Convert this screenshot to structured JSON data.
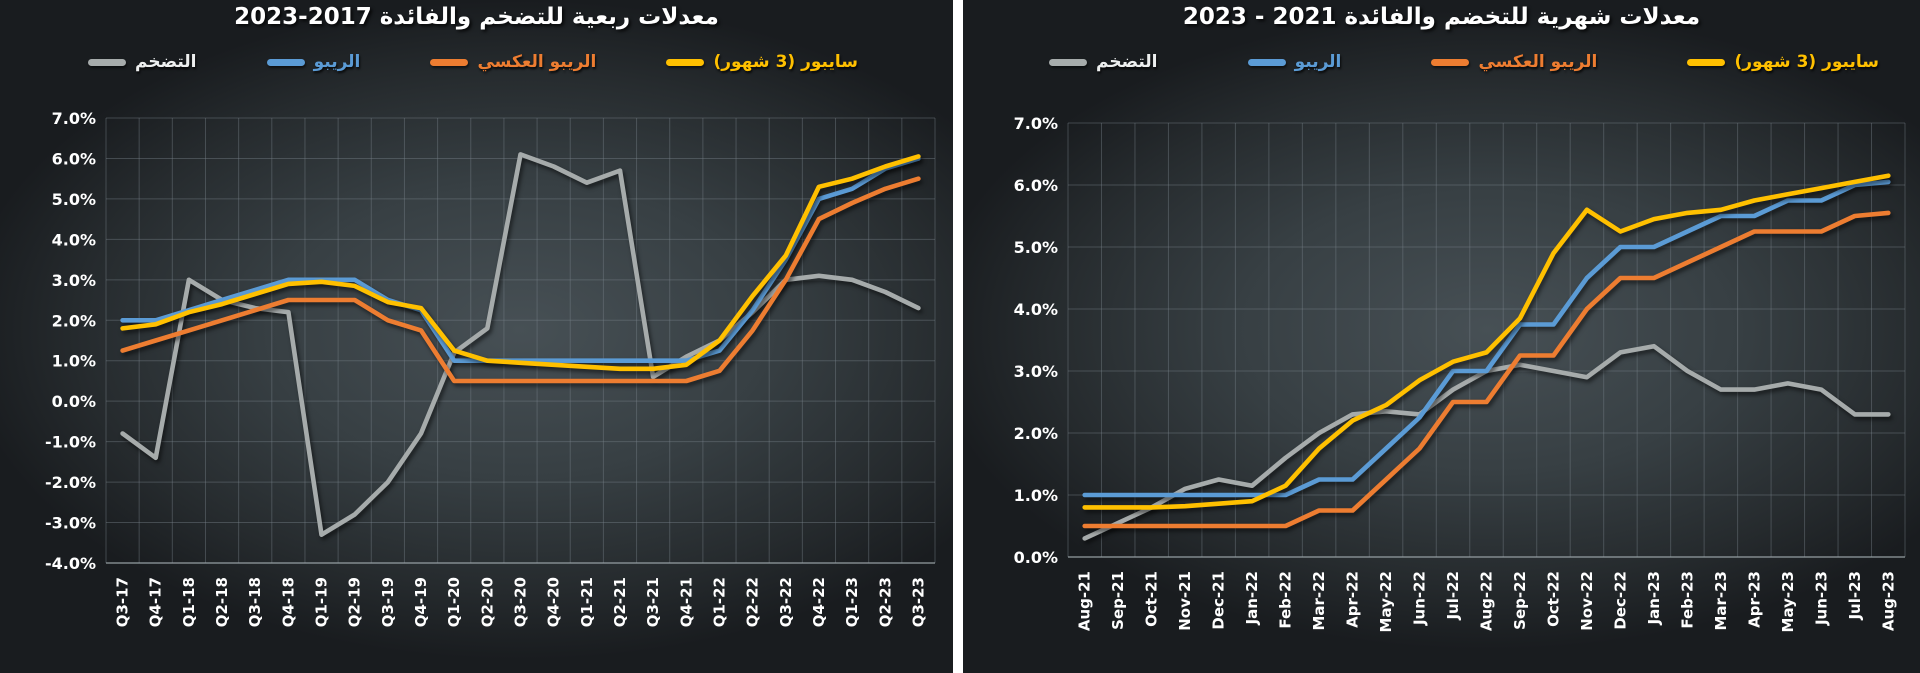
{
  "page": {
    "background": "#1a1d20",
    "divider_color": "#ffffff"
  },
  "chart_data": [
    {
      "type": "line",
      "title": "معدلات ربعية للتضخم والفائدة 2017-2023",
      "xlabel": "",
      "ylabel": "",
      "ylim": [
        -4,
        7
      ],
      "ytick_step": 1,
      "ytick_suffix": "%",
      "grid": true,
      "legend_position": "top",
      "categories": [
        "Q3-17",
        "Q4-17",
        "Q1-18",
        "Q2-18",
        "Q3-18",
        "Q4-18",
        "Q1-19",
        "Q2-19",
        "Q3-19",
        "Q4-19",
        "Q1-20",
        "Q2-20",
        "Q3-20",
        "Q4-20",
        "Q1-21",
        "Q2-21",
        "Q3-21",
        "Q4-21",
        "Q1-22",
        "Q2-22",
        "Q3-22",
        "Q4-22",
        "Q1-23",
        "Q2-23",
        "Q3-23"
      ],
      "series": [
        {
          "name": "التضخم",
          "color": "#A6ABAB",
          "legend_text_color": "#EDEFEF",
          "values": [
            -0.8,
            -1.4,
            3.0,
            2.5,
            2.3,
            2.2,
            -3.3,
            -2.8,
            -2.0,
            -0.8,
            1.2,
            1.8,
            6.1,
            5.8,
            5.4,
            5.7,
            0.6,
            1.1,
            1.5,
            2.2,
            3.0,
            3.1,
            3.0,
            2.7,
            2.3
          ]
        },
        {
          "name": "الريبو",
          "color": "#5B9BD5",
          "values": [
            2.0,
            2.0,
            2.25,
            2.5,
            2.75,
            3.0,
            3.0,
            3.0,
            2.5,
            2.25,
            1.0,
            1.0,
            1.0,
            1.0,
            1.0,
            1.0,
            1.0,
            1.0,
            1.25,
            2.25,
            3.5,
            5.0,
            5.25,
            5.75,
            6.0
          ]
        },
        {
          "name": "الريبو العكسي",
          "color": "#ED7D31",
          "values": [
            1.25,
            1.5,
            1.75,
            2.0,
            2.25,
            2.5,
            2.5,
            2.5,
            2.0,
            1.75,
            0.5,
            0.5,
            0.5,
            0.5,
            0.5,
            0.5,
            0.5,
            0.5,
            0.75,
            1.75,
            3.0,
            4.5,
            4.9,
            5.25,
            5.5
          ]
        },
        {
          "name": "سايبور (3 شهور)",
          "color": "#FFC000",
          "values": [
            1.8,
            1.9,
            2.2,
            2.4,
            2.65,
            2.9,
            2.95,
            2.85,
            2.45,
            2.3,
            1.25,
            1.0,
            0.95,
            0.9,
            0.85,
            0.8,
            0.8,
            0.9,
            1.5,
            2.6,
            3.6,
            5.3,
            5.5,
            5.8,
            6.05
          ]
        }
      ]
    },
    {
      "type": "line",
      "title": "معدلات شهرية للتخضم والفائدة 2021 - 2023",
      "xlabel": "",
      "ylabel": "",
      "ylim": [
        0,
        7
      ],
      "ytick_step": 1,
      "ytick_suffix": "%",
      "grid": true,
      "legend_position": "top",
      "categories": [
        "Aug-21",
        "Sep-21",
        "Oct-21",
        "Nov-21",
        "Dec-21",
        "Jan-22",
        "Feb-22",
        "Mar-22",
        "Apr-22",
        "May-22",
        "Jun-22",
        "Jul-22",
        "Aug-22",
        "Sep-22",
        "Oct-22",
        "Nov-22",
        "Dec-22",
        "Jan-23",
        "Feb-23",
        "Mar-23",
        "Apr-23",
        "May-23",
        "Jun-23",
        "Jul-23",
        "Aug-23"
      ],
      "series": [
        {
          "name": "التضخم",
          "color": "#A6ABAB",
          "legend_text_color": "#EDEFEF",
          "values": [
            0.3,
            0.55,
            0.8,
            1.1,
            1.25,
            1.15,
            1.6,
            2.0,
            2.3,
            2.35,
            2.3,
            2.7,
            3.0,
            3.1,
            3.0,
            2.9,
            3.3,
            3.4,
            3.0,
            2.7,
            2.7,
            2.8,
            2.7,
            2.3,
            2.3
          ]
        },
        {
          "name": "الريبو",
          "color": "#5B9BD5",
          "values": [
            1.0,
            1.0,
            1.0,
            1.0,
            1.0,
            1.0,
            1.0,
            1.25,
            1.25,
            1.75,
            2.25,
            3.0,
            3.0,
            3.75,
            3.75,
            4.5,
            5.0,
            5.0,
            5.25,
            5.5,
            5.5,
            5.75,
            5.75,
            6.0,
            6.05
          ]
        },
        {
          "name": "الريبو العكسي",
          "color": "#ED7D31",
          "values": [
            0.5,
            0.5,
            0.5,
            0.5,
            0.5,
            0.5,
            0.5,
            0.75,
            0.75,
            1.25,
            1.75,
            2.5,
            2.5,
            3.25,
            3.25,
            4.0,
            4.5,
            4.5,
            4.75,
            5.0,
            5.25,
            5.25,
            5.25,
            5.5,
            5.55
          ]
        },
        {
          "name": "سايبور (3 شهور)",
          "color": "#FFC000",
          "values": [
            0.8,
            0.8,
            0.8,
            0.82,
            0.86,
            0.9,
            1.15,
            1.75,
            2.2,
            2.45,
            2.85,
            3.15,
            3.3,
            3.85,
            4.9,
            5.6,
            5.25,
            5.45,
            5.55,
            5.6,
            5.75,
            5.85,
            5.95,
            6.05,
            6.15
          ]
        }
      ]
    }
  ]
}
